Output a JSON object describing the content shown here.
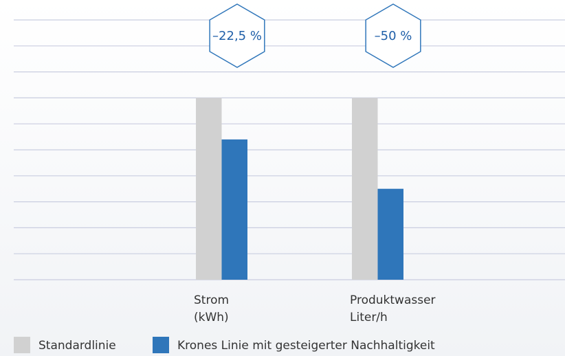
{
  "chart_data": {
    "type": "bar",
    "categories": [
      [
        "Strom",
        "(kWh)"
      ],
      [
        "Produktwasser",
        "Liter/h"
      ]
    ],
    "series": [
      {
        "name": "Standardlinie",
        "color": "#d1d1d1",
        "values": [
          7,
          7
        ]
      },
      {
        "name": "Krones Linie mit gesteigerter Nachhaltigkeit",
        "color": "#2f76ba",
        "values": [
          5.4,
          3.5
        ]
      }
    ],
    "annotations": [
      "–22,5 %",
      "–50 %"
    ],
    "annotation_color": "#2f76ba",
    "ylim": [
      0,
      10
    ],
    "yticks": [
      0,
      1,
      2,
      3,
      4,
      5,
      6,
      7,
      8,
      9,
      10
    ],
    "grid": true
  }
}
